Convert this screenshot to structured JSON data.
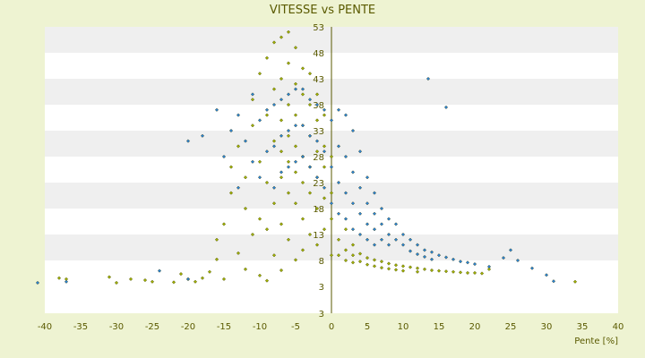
{
  "chart_data": {
    "type": "scatter",
    "title": "VITESSE vs PENTE",
    "xlabel": "Pente [%]",
    "ylabel": "",
    "xlim": [
      -40,
      40
    ],
    "ylim": [
      3,
      53
    ],
    "x_ticks": [
      -40,
      -35,
      -30,
      -25,
      -20,
      -15,
      -10,
      -5,
      0,
      5,
      10,
      15,
      20,
      25,
      30,
      35,
      40
    ],
    "y_tick_labels": [
      "53",
      "48",
      "43",
      "38",
      "33",
      "28",
      "23",
      "18",
      "13",
      "8",
      "3",
      "3"
    ],
    "grid": "horizontal bands",
    "series": [
      {
        "marker": "green-yellow diamond",
        "color": "#9fb000",
        "points": [
          [
            -38,
            4.6
          ],
          [
            -37,
            4.4
          ],
          [
            -31,
            4.8
          ],
          [
            -30,
            3.7
          ],
          [
            -28,
            4.4
          ],
          [
            -26,
            4.2
          ],
          [
            -25,
            3.9
          ],
          [
            -22,
            3.8
          ],
          [
            -21,
            5.4
          ],
          [
            -20,
            4.4
          ],
          [
            -19,
            3.9
          ],
          [
            -18,
            4.6
          ],
          [
            -17,
            5.8
          ],
          [
            -16,
            8.2
          ],
          [
            -16,
            12
          ],
          [
            -15,
            4.4
          ],
          [
            -15,
            15
          ],
          [
            -14,
            21
          ],
          [
            -14,
            26
          ],
          [
            -13,
            30
          ],
          [
            -13,
            9.4
          ],
          [
            -12,
            6.3
          ],
          [
            -12,
            18
          ],
          [
            -12,
            24
          ],
          [
            -11,
            34
          ],
          [
            -11,
            13
          ],
          [
            -11,
            39
          ],
          [
            -10,
            44
          ],
          [
            -10,
            16
          ],
          [
            -10,
            27
          ],
          [
            -10,
            5.1
          ],
          [
            -9,
            47
          ],
          [
            -9,
            36
          ],
          [
            -9,
            23
          ],
          [
            -9,
            14
          ],
          [
            -9,
            4.1
          ],
          [
            -8,
            50
          ],
          [
            -8,
            41
          ],
          [
            -8,
            31
          ],
          [
            -8,
            19
          ],
          [
            -8,
            9
          ],
          [
            -7,
            51
          ],
          [
            -7,
            43
          ],
          [
            -7,
            35
          ],
          [
            -7,
            29
          ],
          [
            -7,
            24
          ],
          [
            -7,
            15
          ],
          [
            -7,
            6.1
          ],
          [
            -6,
            52
          ],
          [
            -6,
            46
          ],
          [
            -6,
            38
          ],
          [
            -6,
            32
          ],
          [
            -6,
            27
          ],
          [
            -6,
            21
          ],
          [
            -6,
            12
          ],
          [
            -5,
            49
          ],
          [
            -5,
            42
          ],
          [
            -5,
            36
          ],
          [
            -5,
            30
          ],
          [
            -5,
            25
          ],
          [
            -5,
            19
          ],
          [
            -5,
            8.1
          ],
          [
            -4,
            45
          ],
          [
            -4,
            40
          ],
          [
            -4,
            34
          ],
          [
            -4,
            28
          ],
          [
            -4,
            23
          ],
          [
            -4,
            16
          ],
          [
            -4,
            10
          ],
          [
            -3,
            44
          ],
          [
            -3,
            38
          ],
          [
            -3,
            32
          ],
          [
            -3,
            26
          ],
          [
            -3,
            21
          ],
          [
            -3,
            13
          ],
          [
            -2,
            40
          ],
          [
            -2,
            35
          ],
          [
            -2,
            29
          ],
          [
            -2,
            24
          ],
          [
            -2,
            18
          ],
          [
            -2,
            11
          ],
          [
            -1,
            36
          ],
          [
            -1,
            30
          ],
          [
            -1,
            26
          ],
          [
            -1,
            20
          ],
          [
            -1,
            14
          ],
          [
            0,
            28
          ],
          [
            0,
            21
          ],
          [
            0,
            16
          ],
          [
            0,
            9
          ],
          [
            1,
            12
          ],
          [
            1,
            9
          ],
          [
            2,
            14
          ],
          [
            2,
            10
          ],
          [
            2,
            8
          ],
          [
            3,
            11
          ],
          [
            3,
            9
          ],
          [
            3,
            7.6
          ],
          [
            4,
            9.3
          ],
          [
            4,
            7.8
          ],
          [
            5,
            8.5
          ],
          [
            5,
            7.2
          ],
          [
            6,
            8.1
          ],
          [
            6,
            6.9
          ],
          [
            7,
            7.8
          ],
          [
            7,
            6.6
          ],
          [
            8,
            7.4
          ],
          [
            8,
            6.4
          ],
          [
            9,
            7.1
          ],
          [
            9,
            6.2
          ],
          [
            10,
            6.9
          ],
          [
            10,
            6.0
          ],
          [
            11,
            6.7
          ],
          [
            12,
            6.5
          ],
          [
            12,
            5.8
          ],
          [
            13,
            6.3
          ],
          [
            14,
            6.1
          ],
          [
            15,
            6.0
          ],
          [
            16,
            5.9
          ],
          [
            17,
            5.8
          ],
          [
            18,
            5.7
          ],
          [
            19,
            5.6
          ],
          [
            20,
            5.6
          ],
          [
            21,
            5.5
          ],
          [
            22,
            6.3
          ],
          [
            34,
            3.9
          ]
        ]
      },
      {
        "marker": "blue diamond",
        "color": "#2a82d6",
        "points": [
          [
            -41,
            3.7
          ],
          [
            -37,
            3.9
          ],
          [
            -24,
            6.0
          ],
          [
            -20,
            4.4
          ],
          [
            -20,
            31
          ],
          [
            -18,
            32
          ],
          [
            -16,
            37
          ],
          [
            -15,
            28
          ],
          [
            -14,
            33
          ],
          [
            -13,
            36
          ],
          [
            -13,
            22
          ],
          [
            -12,
            31
          ],
          [
            -11,
            40
          ],
          [
            -11,
            27
          ],
          [
            -10,
            35
          ],
          [
            -10,
            24
          ],
          [
            -9,
            37
          ],
          [
            -9,
            29
          ],
          [
            -8,
            38
          ],
          [
            -8,
            30
          ],
          [
            -8,
            22
          ],
          [
            -7,
            39
          ],
          [
            -7,
            32
          ],
          [
            -7,
            25
          ],
          [
            -6,
            40
          ],
          [
            -6,
            33
          ],
          [
            -6,
            26
          ],
          [
            -5,
            41
          ],
          [
            -5,
            34
          ],
          [
            -5,
            27
          ],
          [
            -4,
            41
          ],
          [
            -4,
            34
          ],
          [
            -4,
            28
          ],
          [
            -3,
            39
          ],
          [
            -3,
            32
          ],
          [
            -3,
            26
          ],
          [
            -2,
            38
          ],
          [
            -2,
            31
          ],
          [
            -2,
            24
          ],
          [
            -1,
            37
          ],
          [
            -1,
            29
          ],
          [
            -1,
            22
          ],
          [
            0,
            35
          ],
          [
            0,
            26
          ],
          [
            0,
            19
          ],
          [
            1,
            37
          ],
          [
            1,
            30
          ],
          [
            1,
            23
          ],
          [
            1,
            17
          ],
          [
            2,
            36
          ],
          [
            2,
            28
          ],
          [
            2,
            21
          ],
          [
            2,
            16
          ],
          [
            3,
            33
          ],
          [
            3,
            25
          ],
          [
            3,
            19
          ],
          [
            3,
            14
          ],
          [
            4,
            29
          ],
          [
            4,
            22
          ],
          [
            4,
            17
          ],
          [
            4,
            13
          ],
          [
            5,
            24
          ],
          [
            5,
            19
          ],
          [
            5,
            15
          ],
          [
            5,
            12
          ],
          [
            6,
            21
          ],
          [
            6,
            17
          ],
          [
            6,
            14
          ],
          [
            6,
            11
          ],
          [
            7,
            18
          ],
          [
            7,
            15
          ],
          [
            7,
            12
          ],
          [
            8,
            16
          ],
          [
            8,
            13
          ],
          [
            8,
            11
          ],
          [
            9,
            15
          ],
          [
            9,
            12
          ],
          [
            10,
            13
          ],
          [
            10,
            11
          ],
          [
            11,
            12
          ],
          [
            11,
            9.8
          ],
          [
            12,
            11
          ],
          [
            12,
            9.2
          ],
          [
            13,
            10
          ],
          [
            13,
            8.7
          ],
          [
            14,
            9.6
          ],
          [
            14,
            8.2
          ],
          [
            15,
            9.0
          ],
          [
            16,
            8.6
          ],
          [
            17,
            8.2
          ],
          [
            18,
            7.8
          ],
          [
            19,
            7.6
          ],
          [
            20,
            7.3
          ],
          [
            22,
            6.8
          ],
          [
            24,
            8.5
          ],
          [
            25,
            10
          ],
          [
            26,
            8.0
          ],
          [
            28,
            6.5
          ],
          [
            30,
            5.2
          ],
          [
            31,
            4.0
          ],
          [
            13.5,
            43
          ],
          [
            16,
            37.5
          ]
        ]
      }
    ]
  }
}
